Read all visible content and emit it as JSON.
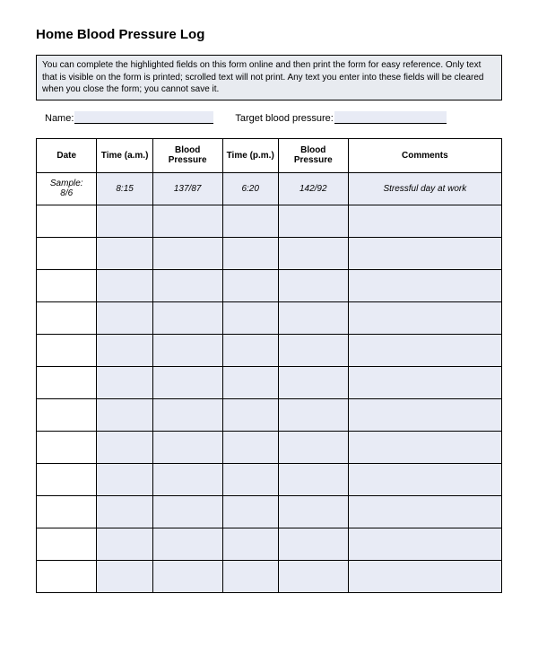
{
  "title": "Home Blood Pressure Log",
  "info_text": "You can complete the highlighted fields on this form online and then print the form for easy reference. Only text that is visible on the form is printed; scrolled text will not print. Any text you enter into these fields will be cleared when you close the form; you cannot save it.",
  "fields": {
    "name_label": "Name:",
    "name_value": "",
    "target_label": "Target blood pressure:",
    "target_value": ""
  },
  "table": {
    "columns": [
      "Date",
      "Time (a.m.)",
      "Blood Pressure",
      "Time (p.m.)",
      "Blood Pressure",
      "Comments"
    ],
    "rows": [
      {
        "date": "Sample:\n8/6",
        "time_am": "8:15",
        "bp_am": "137/87",
        "time_pm": "6:20",
        "bp_pm": "142/92",
        "comments": "Stressful day at work"
      },
      {
        "date": "",
        "time_am": "",
        "bp_am": "",
        "time_pm": "",
        "bp_pm": "",
        "comments": ""
      },
      {
        "date": "",
        "time_am": "",
        "bp_am": "",
        "time_pm": "",
        "bp_pm": "",
        "comments": ""
      },
      {
        "date": "",
        "time_am": "",
        "bp_am": "",
        "time_pm": "",
        "bp_pm": "",
        "comments": ""
      },
      {
        "date": "",
        "time_am": "",
        "bp_am": "",
        "time_pm": "",
        "bp_pm": "",
        "comments": ""
      },
      {
        "date": "",
        "time_am": "",
        "bp_am": "",
        "time_pm": "",
        "bp_pm": "",
        "comments": ""
      },
      {
        "date": "",
        "time_am": "",
        "bp_am": "",
        "time_pm": "",
        "bp_pm": "",
        "comments": ""
      },
      {
        "date": "",
        "time_am": "",
        "bp_am": "",
        "time_pm": "",
        "bp_pm": "",
        "comments": ""
      },
      {
        "date": "",
        "time_am": "",
        "bp_am": "",
        "time_pm": "",
        "bp_pm": "",
        "comments": ""
      },
      {
        "date": "",
        "time_am": "",
        "bp_am": "",
        "time_pm": "",
        "bp_pm": "",
        "comments": ""
      },
      {
        "date": "",
        "time_am": "",
        "bp_am": "",
        "time_pm": "",
        "bp_pm": "",
        "comments": ""
      },
      {
        "date": "",
        "time_am": "",
        "bp_am": "",
        "time_pm": "",
        "bp_pm": "",
        "comments": ""
      },
      {
        "date": "",
        "time_am": "",
        "bp_am": "",
        "time_pm": "",
        "bp_pm": "",
        "comments": ""
      }
    ],
    "header_bg": "#ffffff",
    "cell_bg": "#e8ebf5",
    "border_color": "#000000"
  }
}
